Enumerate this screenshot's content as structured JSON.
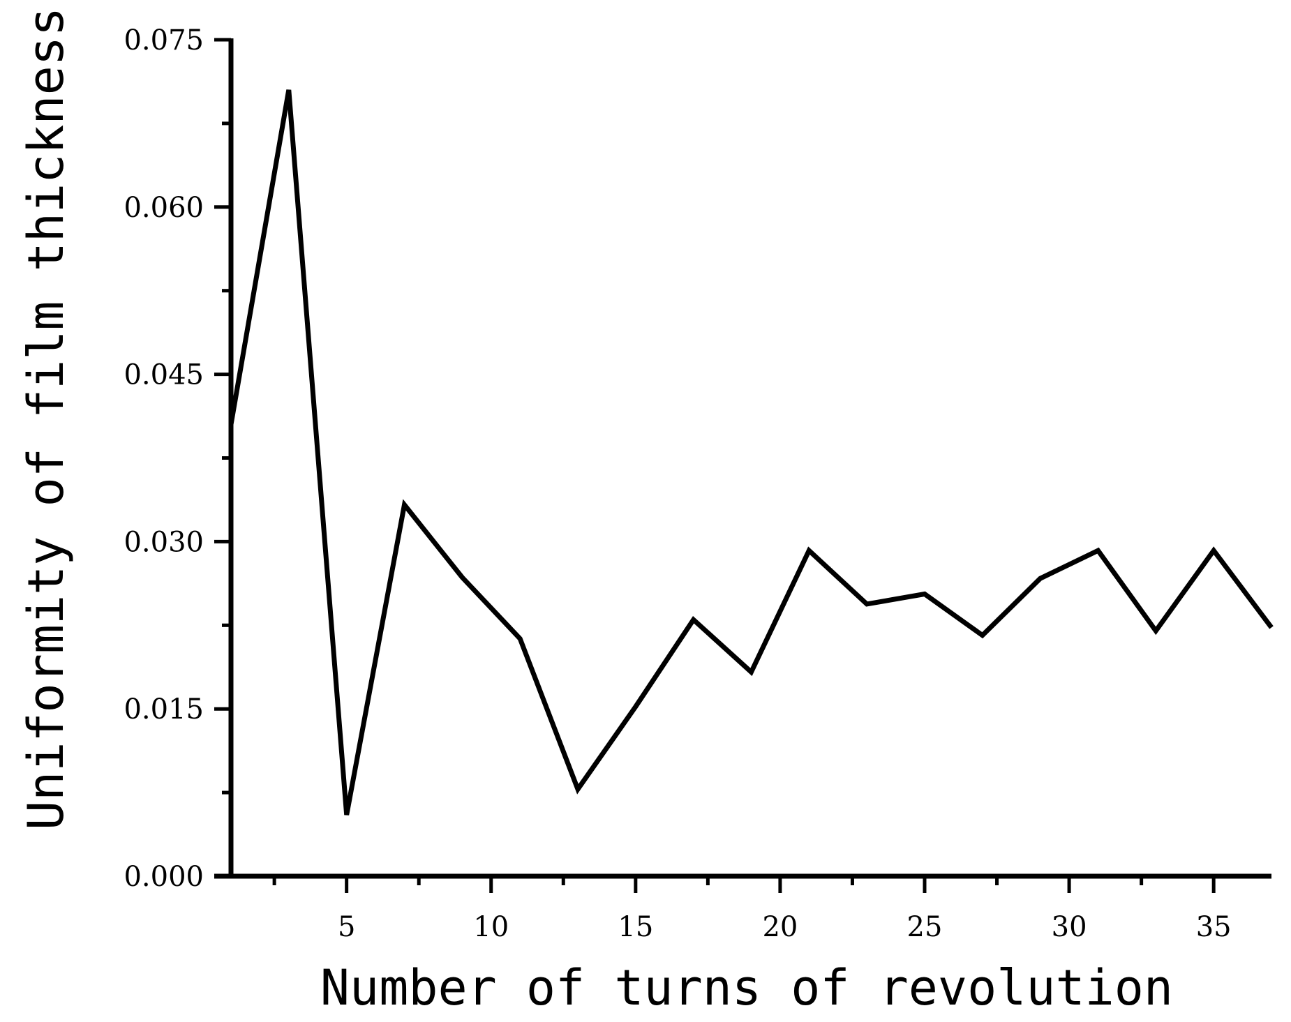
{
  "chart_data": {
    "type": "line",
    "xlabel": "Number of turns of revolution",
    "ylabel": "Uniformity of film thickness",
    "xlim": [
      1,
      37
    ],
    "ylim": [
      0,
      0.075
    ],
    "x_ticks": [
      5,
      10,
      15,
      20,
      25,
      30,
      35
    ],
    "x_tick_labels": [
      "5",
      "10",
      "15",
      "20",
      "25",
      "30",
      "35"
    ],
    "y_ticks": [
      0,
      0.015,
      0.03,
      0.045,
      0.06,
      0.075
    ],
    "y_tick_labels": [
      "0.000",
      "0.015",
      "0.030",
      "0.045",
      "0.060",
      "0.075"
    ],
    "grid": false,
    "line_color": "#000000",
    "series": [
      {
        "x": [
          1,
          3,
          5,
          7,
          9,
          11,
          13,
          15,
          17,
          19,
          21,
          23,
          25,
          27,
          29,
          31,
          33,
          35,
          37
        ],
        "values": [
          0.0405,
          0.0705,
          0.0055,
          0.0333,
          0.0268,
          0.0213,
          0.0078,
          0.0152,
          0.023,
          0.0183,
          0.0292,
          0.0244,
          0.0253,
          0.0216,
          0.0267,
          0.0292,
          0.022,
          0.0292,
          0.0223
        ]
      }
    ]
  }
}
